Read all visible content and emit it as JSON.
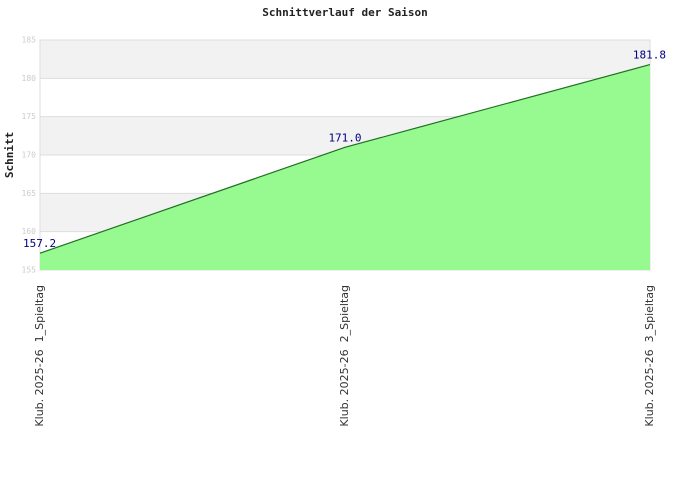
{
  "chart_data": {
    "type": "area",
    "title": "Schnittverlauf der Saison",
    "y_label": "Schnitt",
    "categories": [
      "Klub. 2025-26  1_Spieltag",
      "Klub. 2025-26  2_Spieltag",
      "Klub. 2025-26  3_Spieltag"
    ],
    "values": [
      157.2,
      171.0,
      181.8
    ],
    "value_labels": [
      "157.2",
      "171.0",
      "181.8"
    ],
    "color": "#90fa8a",
    "line_color": "#207020",
    "ylim": [
      155,
      185
    ],
    "yticks": [
      155,
      160,
      165,
      170,
      175,
      180,
      185
    ],
    "grid": true
  }
}
